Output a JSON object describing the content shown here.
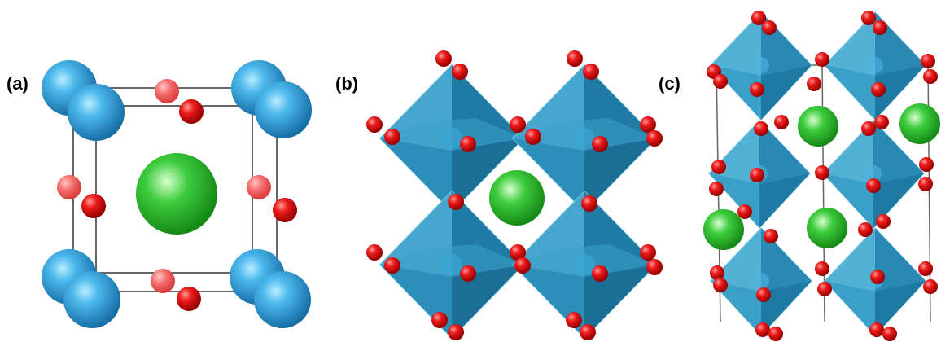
{
  "panels": [
    {
      "label": "(a)"
    },
    {
      "label": "(b)"
    },
    {
      "label": "(c)"
    }
  ],
  "colors": {
    "background": "#ffffff",
    "b_site_atom": "#2f9ad8",
    "oxygen_atom": "#e0141a",
    "a_site_atom": "#33c233",
    "octahedron": "#2a8fb8",
    "cell_edge": "#555555"
  }
}
